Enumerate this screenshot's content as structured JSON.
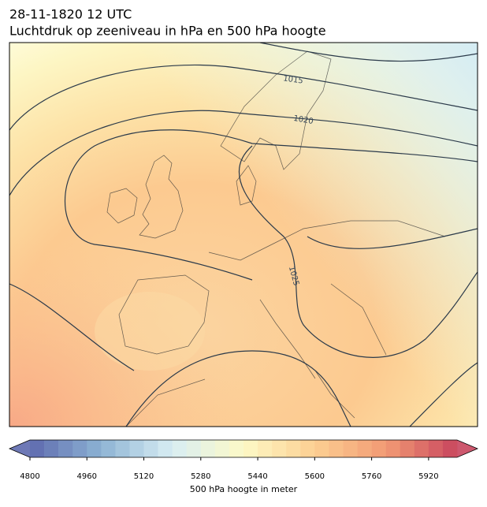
{
  "header": {
    "date": "28-11-1820 12 UTC",
    "title": "Luchtdruk op zeeniveau in hPa en 500 hPa hoogte"
  },
  "isobar_labels": [
    1015,
    1020,
    1025
  ],
  "colorbar": {
    "label": "500 hPa hoogte in meter",
    "lim": [
      4800,
      6000
    ],
    "level_step": 40,
    "ticks": [
      4800,
      4960,
      5120,
      5280,
      5440,
      5600,
      5760,
      5920
    ],
    "colors": [
      "#5e6aae",
      "#8db3d4",
      "#d8eef3",
      "#fdf9c6",
      "#fccf92",
      "#f29a74",
      "#c8465e"
    ]
  }
}
